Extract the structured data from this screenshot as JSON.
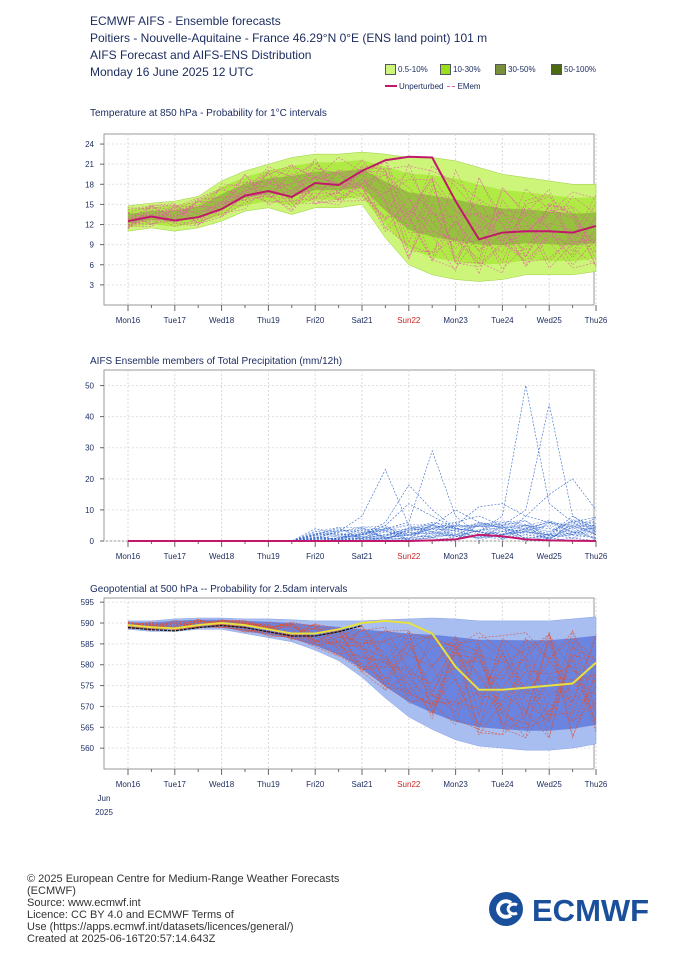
{
  "header": {
    "line1": "ECMWF AIFS - Ensemble forecasts",
    "line2": "Poitiers - Nouvelle-Aquitaine - France 46.29°N 0°E (ENS land point) 101 m",
    "line3": "AIFS Forecast and AIFS-ENS Distribution",
    "line4": "Monday 16 June 2025 12 UTC"
  },
  "legend": {
    "items": [
      {
        "label": "0.5-10%",
        "color": "#ccf57a"
      },
      {
        "label": "10-30%",
        "color": "#99e01a"
      },
      {
        "label": "30-50%",
        "color": "#7a8f3a"
      },
      {
        "label": "50-100%",
        "color": "#4c6b0e"
      }
    ],
    "unperturbed": "Unperturbed",
    "emem": "EMem"
  },
  "x_axis": {
    "days": [
      "Mon16",
      "Tue17",
      "Wed18",
      "Thu19",
      "Fri20",
      "Sat21",
      "Sun22",
      "Mon23",
      "Tue24",
      "Wed25",
      "Thu26"
    ],
    "highlight_day": "Sun22",
    "month": "Jun",
    "year": "2025"
  },
  "colors": {
    "text": "#1a2a5e",
    "sunday": "#cc2222",
    "unperturbed_t850": "#c2186b",
    "unperturbed_z500": "#e6e040",
    "ens_t850": "#e060a0",
    "ens_precip": "#3366cc",
    "ens_z500": "#e05030",
    "z500_band_outer": "#a8bdf0",
    "z500_band_inner": "#5571d9"
  },
  "chart_data": [
    {
      "type": "line",
      "title": "Temperature at 850 hPa - Probability for 1°C intervals",
      "ylim": [
        0,
        25.5
      ],
      "yticks": [
        3,
        6,
        9,
        12,
        15,
        18,
        21,
        24
      ],
      "x_steps_12h": [
        0,
        1,
        2,
        3,
        4,
        5,
        6,
        7,
        8,
        9,
        10,
        11,
        12,
        13,
        14,
        15,
        16,
        17,
        18,
        19,
        20
      ],
      "series": [
        {
          "name": "Unperturbed",
          "values": [
            12.5,
            13.2,
            12.6,
            13.1,
            14.3,
            16.3,
            17.0,
            16.1,
            18.2,
            17.9,
            20.0,
            21.6,
            22.1,
            22.0,
            15.5,
            9.8,
            10.8,
            11.0,
            11.0,
            10.8,
            11.8
          ]
        }
      ],
      "band": {
        "lower": [
          11.0,
          11.5,
          11.0,
          11.5,
          12.5,
          14.0,
          14.5,
          13.5,
          14.5,
          14.5,
          15.0,
          10.0,
          6.0,
          4.5,
          3.8,
          3.5,
          3.8,
          4.5,
          4.5,
          4.5,
          5.0
        ],
        "upper": [
          14.8,
          15.2,
          15.5,
          16.2,
          18.5,
          20.0,
          21.0,
          22.0,
          22.5,
          22.5,
          22.8,
          22.5,
          22.0,
          22.0,
          21.5,
          20.5,
          19.5,
          19.0,
          18.5,
          18.0,
          18.0
        ]
      }
    },
    {
      "type": "line",
      "title": "AIFS Ensemble members of Total Precipitation (mm/12h)",
      "ylim": [
        0,
        55
      ],
      "yticks": [
        0,
        10,
        20,
        30,
        40,
        50
      ],
      "x_steps_12h": [
        0,
        1,
        2,
        3,
        4,
        5,
        6,
        7,
        8,
        9,
        10,
        11,
        12,
        13,
        14,
        15,
        16,
        17,
        18,
        19,
        20
      ],
      "series": [
        {
          "name": "Unperturbed",
          "values": [
            0,
            0,
            0,
            0,
            0,
            0,
            0,
            0,
            0,
            0,
            0,
            0,
            0,
            0.2,
            0.5,
            2.0,
            1.5,
            0.5,
            0.2,
            0.1,
            0
          ]
        },
        {
          "values": [
            0,
            0,
            0,
            0,
            0,
            0,
            0,
            0,
            0,
            0.5,
            1,
            2,
            4,
            6,
            4,
            3,
            2,
            8,
            6,
            3,
            1
          ]
        },
        {
          "values": [
            0,
            0,
            0,
            0,
            0,
            0,
            0,
            0.2,
            1,
            3,
            8,
            23,
            5,
            3,
            2,
            1,
            2,
            3,
            2,
            1,
            0
          ]
        },
        {
          "values": [
            0,
            0,
            0,
            0,
            0,
            0,
            0,
            0,
            0,
            0,
            2,
            6,
            18,
            10,
            4,
            3,
            1,
            2,
            1,
            0,
            0
          ]
        },
        {
          "values": [
            0,
            0,
            0,
            0,
            0,
            0,
            0,
            0,
            0.5,
            1,
            2,
            4,
            6,
            29,
            8,
            2,
            3,
            5,
            4,
            2,
            1
          ]
        },
        {
          "values": [
            0,
            0,
            0,
            0,
            0,
            0,
            0,
            0,
            0,
            0,
            1,
            2,
            3,
            5,
            4,
            3,
            8,
            50,
            12,
            6,
            2
          ]
        },
        {
          "values": [
            0,
            0,
            0,
            0,
            0,
            0,
            0,
            0,
            0,
            0,
            0.5,
            1,
            2,
            4,
            6,
            8,
            5,
            10,
            44,
            8,
            3
          ]
        },
        {
          "values": [
            0,
            0,
            0,
            0,
            0,
            0,
            0,
            0,
            0,
            0,
            0,
            1,
            2,
            3,
            5,
            11,
            12,
            8,
            15,
            20,
            10
          ]
        },
        {
          "values": [
            0,
            0,
            0,
            0,
            0,
            0,
            0,
            0,
            0,
            1,
            2,
            5,
            12,
            8,
            4,
            3,
            2,
            4,
            6,
            5,
            2
          ]
        },
        {
          "values": [
            0,
            0,
            0,
            0,
            0,
            0,
            0,
            0,
            0,
            0,
            1,
            3,
            2,
            5,
            10,
            6,
            4,
            3,
            2,
            8,
            4
          ]
        }
      ]
    },
    {
      "type": "line",
      "title": "Geopotential at 500 hPa -- Probability for 2.5dam intervals",
      "ylim": [
        555,
        596
      ],
      "yticks": [
        560,
        565,
        570,
        575,
        580,
        585,
        590,
        595
      ],
      "x_steps_12h": [
        0,
        1,
        2,
        3,
        4,
        5,
        6,
        7,
        8,
        9,
        10,
        11,
        12,
        13,
        14,
        15,
        16,
        17,
        18,
        19,
        20
      ],
      "series": [
        {
          "name": "Unperturbed",
          "values": [
            589.5,
            589.0,
            588.7,
            589.5,
            590.0,
            589.5,
            588.5,
            587.5,
            587.5,
            588.5,
            590.0,
            590.5,
            590.0,
            587.5,
            579.5,
            574.0,
            574.0,
            574.5,
            575.0,
            575.5,
            580.5
          ]
        }
      ],
      "band": {
        "lower": [
          588.5,
          588.0,
          588.0,
          588.5,
          588.5,
          587.5,
          586.5,
          585.5,
          583.5,
          581.0,
          577.0,
          572.0,
          567.5,
          564.5,
          562.0,
          560.5,
          560.0,
          559.5,
          559.5,
          560.0,
          561.0
        ],
        "upper": [
          590.5,
          590.5,
          591.0,
          591.2,
          591.2,
          591.0,
          591.0,
          590.8,
          590.5,
          590.5,
          590.5,
          590.8,
          591.0,
          591.2,
          591.0,
          590.5,
          590.5,
          590.5,
          590.5,
          591.0,
          591.5
        ]
      }
    }
  ],
  "footer": {
    "line1": "© 2025 European Centre for Medium-Range Weather Forecasts",
    "line2": "(ECMWF)",
    "line3": "Source: www.ecmwf.int",
    "line4": "Licence: CC BY 4.0 and ECMWF Terms of",
    "line5": "Use (https://apps.ecmwf.int/datasets/licences/general/)",
    "line6": "Created at 2025-06-16T20:57:14.643Z",
    "logo_text": "ECMWF"
  }
}
